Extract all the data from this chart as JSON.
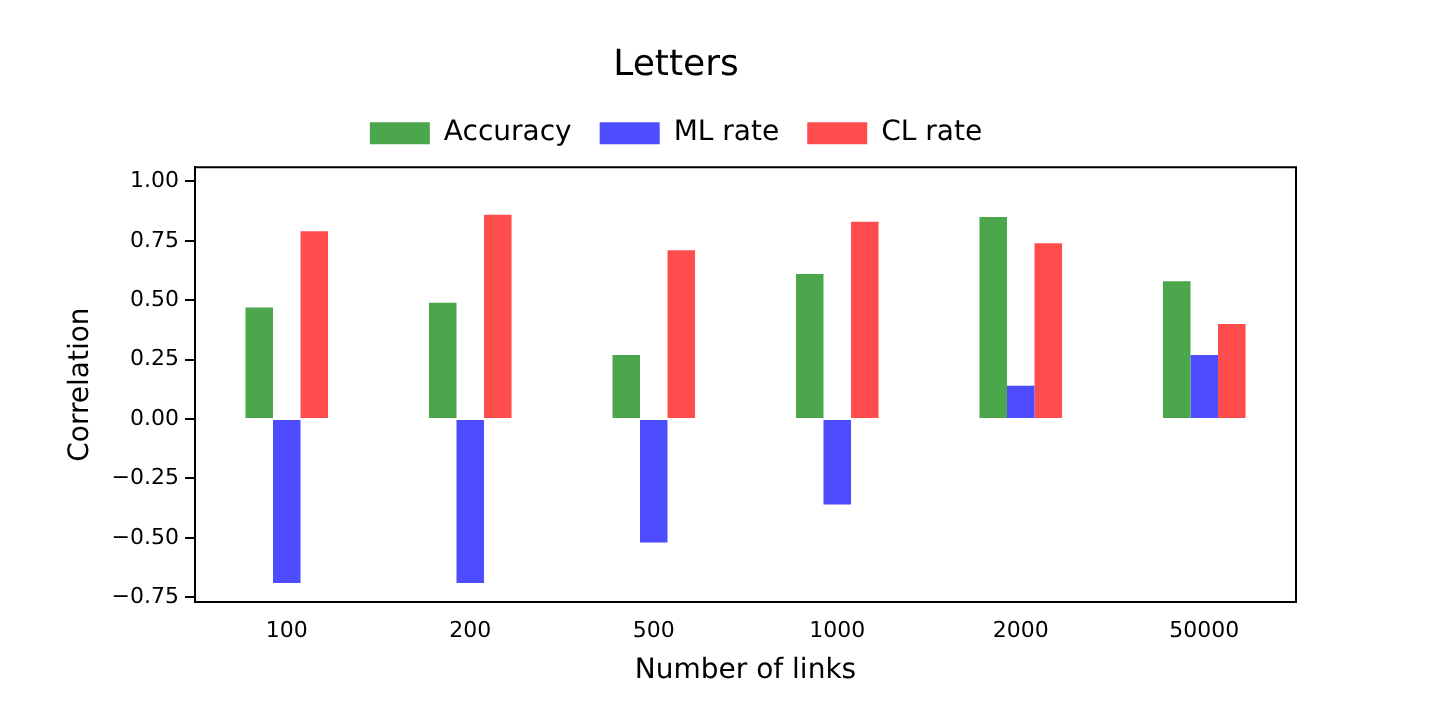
{
  "chart_data": {
    "type": "bar",
    "title": "Letters",
    "xlabel": "Number of links",
    "ylabel": "Correlation",
    "categories": [
      "100",
      "200",
      "500",
      "1000",
      "2000",
      "50000"
    ],
    "series": [
      {
        "name": "Accuracy",
        "color": "#4ca64c",
        "values": [
          0.47,
          0.49,
          0.27,
          0.61,
          0.85,
          0.58
        ]
      },
      {
        "name": "ML rate",
        "color": "#4d4dff",
        "values": [
          -0.69,
          -0.69,
          -0.52,
          -0.36,
          0.14,
          0.27
        ]
      },
      {
        "name": "CL rate",
        "color": "#ff4d4d",
        "values": [
          0.79,
          0.86,
          0.71,
          0.83,
          0.74,
          0.4
        ]
      }
    ],
    "ylim": [
      -0.77,
      1.06
    ],
    "yticks": [
      {
        "value": -0.75,
        "label": "−0.75"
      },
      {
        "value": -0.5,
        "label": "−0.50"
      },
      {
        "value": -0.25,
        "label": "−0.25"
      },
      {
        "value": 0,
        "label": "0.00"
      },
      {
        "value": 0.25,
        "label": "0.25"
      },
      {
        "value": 0.5,
        "label": "0.50"
      },
      {
        "value": 0.75,
        "label": "0.75"
      },
      {
        "value": 1,
        "label": "1.00"
      }
    ],
    "grid": false,
    "legend": "top"
  }
}
